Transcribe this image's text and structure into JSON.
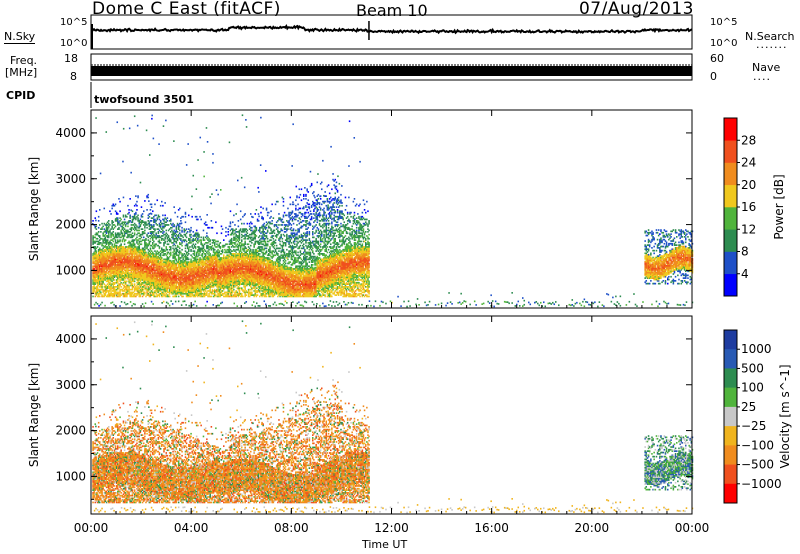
{
  "header": {
    "site": "Dome C East (fitACF)",
    "beam": "Beam 10",
    "date": "07/Aug/2013"
  },
  "labels": {
    "nsky": "N.Sky",
    "nsearch": "N.Search",
    "freq_line1": "Freq.",
    "freq_line2": "[MHz]",
    "nave": "Nave",
    "cpid": "CPID",
    "cpid_name": "twofsound 3501"
  },
  "noise_panel": {
    "left_ticks": [
      "10^5",
      "10^0"
    ],
    "right_ticks": [
      "10^5",
      "10^0"
    ]
  },
  "freq_panel": {
    "left_ticks": [
      "18",
      "8"
    ],
    "right_ticks": [
      "60",
      "0"
    ]
  },
  "time_axis": {
    "label": "Time UT",
    "ticks": [
      "00:00",
      "04:00",
      "08:00",
      "12:00",
      "16:00",
      "20:00",
      "00:00"
    ],
    "tick_hours": [
      0,
      4,
      8,
      12,
      16,
      20,
      24
    ]
  },
  "chart_data": [
    {
      "type": "heatmap",
      "name": "power",
      "xlabel": "Time UT",
      "ylabel": "Slant Range [km]",
      "xlim": [
        0,
        24
      ],
      "ylim": [
        180,
        4500
      ],
      "yticks": [
        1000,
        2000,
        3000,
        4000
      ],
      "colorbar": {
        "label": "Power [dB]",
        "ticks": [
          "4",
          "8",
          "12",
          "16",
          "20",
          "24",
          "28"
        ],
        "colors": [
          "#0000ff",
          "#1e50c8",
          "#2d8c50",
          "#50b43c",
          "#f0c81e",
          "#f08c1e",
          "#f0501e",
          "#ff0000"
        ]
      },
      "regions": [
        {
          "t": [
            0,
            11.1
          ],
          "r": [
            500,
            1900
          ],
          "note": "strong"
        },
        {
          "t": [
            22.1,
            24
          ],
          "r": [
            800,
            1700
          ],
          "note": "strong"
        },
        {
          "t": [
            0,
            24
          ],
          "r": [
            180,
            300
          ],
          "note": "ground"
        }
      ]
    },
    {
      "type": "heatmap",
      "name": "velocity",
      "xlabel": "Time UT",
      "ylabel": "Slant Range [km]",
      "xlim": [
        0,
        24
      ],
      "ylim": [
        180,
        4500
      ],
      "yticks": [
        1000,
        2000,
        3000,
        4000
      ],
      "colorbar": {
        "label": "Velocity [m s^-1]",
        "ticks": [
          "1000",
          "500",
          "100",
          "25",
          "-25",
          "-100",
          "-500",
          "-1000"
        ],
        "colors": [
          "#1e3ca0",
          "#285ab4",
          "#2d8c50",
          "#50b43c",
          "#c8c8c8",
          "#f0b41e",
          "#f08c1e",
          "#f0501e",
          "#ff0000"
        ]
      },
      "regions": [
        {
          "t": [
            0,
            11.1
          ],
          "r": [
            500,
            1900
          ],
          "note": "mostly negative"
        },
        {
          "t": [
            22.1,
            24
          ],
          "r": [
            800,
            1700
          ],
          "note": "mostly positive"
        }
      ]
    }
  ]
}
